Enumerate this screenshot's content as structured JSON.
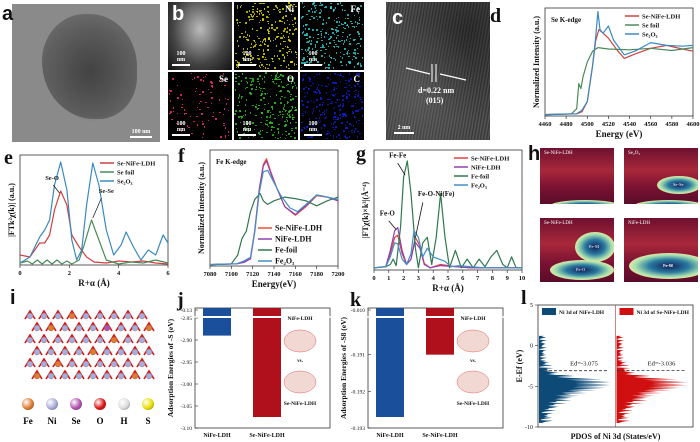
{
  "panels": {
    "a": {
      "label": "a",
      "scale": "100 nm"
    },
    "b": {
      "label": "b",
      "scale": "100 nm",
      "maps": [
        {
          "element": "",
          "color": "#d8d8d8"
        },
        {
          "element": "Ni",
          "color": "#e8e000"
        },
        {
          "element": "Fe",
          "color": "#30d8d8"
        },
        {
          "element": "Se",
          "color": "#e0207a"
        },
        {
          "element": "O",
          "color": "#30d020"
        },
        {
          "element": "C",
          "color": "#1020e0"
        }
      ]
    },
    "c": {
      "label": "c",
      "annotation": "d=0.22 nm",
      "plane": "(015)",
      "scale": "2 nm"
    },
    "h": {
      "label": "h",
      "maps": [
        {
          "title": "Se-NiFe-LDH",
          "features": [
            "Se-O"
          ]
        },
        {
          "title": "Se2O3",
          "features": [
            "Se-Se",
            "Se-O"
          ]
        },
        {
          "title": "Se-NiFe-LDH",
          "features": [
            "Fe-M",
            "Fe-O"
          ]
        },
        {
          "title": "NiFe-LDH",
          "features": [
            "Fe-M",
            "Fe-O"
          ]
        }
      ]
    },
    "i": {
      "label": "i",
      "legend": [
        {
          "name": "Fe",
          "color": "#e07a30"
        },
        {
          "name": "Ni",
          "color": "#a8acd8"
        },
        {
          "name": "Se",
          "color": "#b050b0"
        },
        {
          "name": "O",
          "color": "#e01010"
        },
        {
          "name": "H",
          "color": "#dddddd"
        },
        {
          "name": "S",
          "color": "#e8e000"
        }
      ]
    }
  },
  "chart_data": [
    {
      "id": "d",
      "label": "d",
      "type": "line",
      "title": "Se K-edge",
      "xlabel": "Energy (eV)",
      "ylabel": "Normalized Intensity (a.u.)",
      "xlim": [
        4460,
        4600
      ],
      "xticks": [
        4460,
        4480,
        4500,
        4520,
        4540,
        4560,
        4580,
        4600
      ],
      "ylim": [
        0,
        1.5
      ],
      "series": [
        {
          "name": "Se-NiFe-LDH",
          "color": "#d04040",
          "x": [
            4460,
            4490,
            4495,
            4500,
            4505,
            4508,
            4511,
            4515,
            4520,
            4528,
            4535,
            4545,
            4560,
            4575,
            4590,
            4600
          ],
          "y": [
            0.02,
            0.03,
            0.06,
            0.2,
            0.7,
            1.05,
            1.2,
            1.15,
            1.08,
            0.92,
            0.8,
            0.86,
            0.94,
            0.98,
            0.93,
            0.9
          ]
        },
        {
          "name": "Se foil",
          "color": "#4a8a5a",
          "x": [
            4460,
            4485,
            4490,
            4492,
            4494,
            4496,
            4500,
            4505,
            4510,
            4520,
            4540,
            4560,
            4580,
            4600
          ],
          "y": [
            0.02,
            0.03,
            0.1,
            0.45,
            0.38,
            0.55,
            0.75,
            0.9,
            0.95,
            0.93,
            0.92,
            0.94,
            0.91,
            0.95
          ]
        },
        {
          "name": "Se2O3",
          "color": "#3a8ac0",
          "x": [
            4460,
            4490,
            4495,
            4500,
            4505,
            4508,
            4510,
            4512,
            4515,
            4520,
            4525,
            4535,
            4545,
            4560,
            4575,
            4590,
            4600
          ],
          "y": [
            0.02,
            0.03,
            0.08,
            0.2,
            0.7,
            1.1,
            1.45,
            1.2,
            1.15,
            1.25,
            1.05,
            0.85,
            0.9,
            1.02,
            0.98,
            0.97,
            0.98
          ]
        }
      ]
    },
    {
      "id": "e",
      "label": "e",
      "type": "line",
      "xlabel": "R+α (Å)",
      "ylabel": "|FTk²χ(k)| (a.u.)",
      "xlim": [
        0,
        6
      ],
      "xticks": [
        0,
        2,
        4,
        6
      ],
      "ylim": [
        0,
        1.1
      ],
      "annotations": [
        "Se-O",
        "Se-Se"
      ],
      "series": [
        {
          "name": "Se-NiFe-LDH",
          "color": "#d04040",
          "x": [
            0,
            0.4,
            0.8,
            1.0,
            1.2,
            1.4,
            1.65,
            1.9,
            2.1,
            2.4,
            2.7,
            3.0,
            3.5,
            4.0,
            4.5,
            5.0,
            5.5,
            6.0
          ],
          "y": [
            0.1,
            0.08,
            0.22,
            0.22,
            0.3,
            0.55,
            0.74,
            0.6,
            0.3,
            0.18,
            0.08,
            0.03,
            0.02,
            0.04,
            0.03,
            0.04,
            0.02,
            0.01
          ]
        },
        {
          "name": "Se foil",
          "color": "#4a8a5a",
          "x": [
            0,
            0.3,
            0.5,
            0.7,
            0.9,
            1.1,
            1.3,
            1.5,
            1.7,
            1.9,
            2.1,
            2.4,
            2.6,
            2.9,
            3.2,
            3.5,
            4.0,
            4.5,
            5.0,
            5.5,
            6.0
          ],
          "y": [
            0.02,
            0.04,
            0.01,
            0.05,
            0.01,
            0.05,
            0.01,
            0.05,
            0.01,
            0.04,
            0.01,
            0.05,
            0.2,
            0.45,
            0.25,
            0.05,
            0.01,
            0.03,
            0.02,
            0.05,
            0.02
          ]
        },
        {
          "name": "Se2O3",
          "color": "#3a8ac0",
          "x": [
            0,
            0.4,
            0.8,
            1.0,
            1.2,
            1.4,
            1.65,
            1.9,
            2.1,
            2.3,
            2.5,
            2.7,
            2.95,
            3.2,
            3.5,
            3.8,
            4.1,
            4.3,
            4.6,
            4.9,
            5.2,
            5.5,
            5.8,
            6.0
          ],
          "y": [
            0.02,
            0.08,
            0.28,
            0.35,
            0.45,
            0.8,
            1.03,
            0.75,
            0.25,
            0.05,
            0.15,
            0.6,
            1.02,
            0.8,
            0.35,
            0.1,
            0.2,
            0.33,
            0.18,
            0.05,
            0.15,
            0.1,
            0.3,
            0.22
          ]
        }
      ]
    },
    {
      "id": "f",
      "label": "f",
      "type": "line",
      "title": "Fe K-edge",
      "xlabel": "Energy(eV)",
      "ylabel": "Normalized Intensity (a.u.)",
      "xlim": [
        7080,
        7200
      ],
      "xticks": [
        7080,
        7100,
        7120,
        7140,
        7160,
        7180,
        7200
      ],
      "ylim": [
        0,
        1.6
      ],
      "series": [
        {
          "name": "Se-NiFe-LDH",
          "color": "#f05030",
          "x": [
            7080,
            7105,
            7112,
            7118,
            7122,
            7126,
            7130,
            7133,
            7137,
            7142,
            7150,
            7160,
            7170,
            7180,
            7190,
            7200
          ],
          "y": [
            0.02,
            0.03,
            0.06,
            0.1,
            0.5,
            1.05,
            1.4,
            1.48,
            1.3,
            1.1,
            0.82,
            0.7,
            0.82,
            0.97,
            0.95,
            0.9
          ]
        },
        {
          "name": "NiFe-LDH",
          "color": "#9040b0",
          "x": [
            7080,
            7105,
            7112,
            7118,
            7122,
            7126,
            7130,
            7133,
            7137,
            7142,
            7150,
            7160,
            7170,
            7180,
            7190,
            7200
          ],
          "y": [
            0.02,
            0.03,
            0.05,
            0.1,
            0.48,
            1.02,
            1.38,
            1.45,
            1.28,
            1.1,
            0.82,
            0.71,
            0.83,
            0.98,
            0.95,
            0.9
          ]
        },
        {
          "name": "Fe-foil",
          "color": "#307850",
          "x": [
            7080,
            7100,
            7106,
            7110,
            7114,
            7118,
            7122,
            7127,
            7130,
            7134,
            7140,
            7150,
            7160,
            7170,
            7180,
            7190,
            7200
          ],
          "y": [
            0.02,
            0.03,
            0.15,
            0.38,
            0.48,
            0.75,
            0.92,
            1.0,
            0.9,
            0.85,
            0.9,
            0.95,
            0.93,
            0.9,
            0.83,
            0.9,
            0.95
          ]
        },
        {
          "name": "Fe2O3",
          "color": "#4090c8",
          "x": [
            7080,
            7105,
            7112,
            7118,
            7122,
            7126,
            7130,
            7134,
            7140,
            7146,
            7155,
            7162,
            7170,
            7180,
            7190,
            7200
          ],
          "y": [
            0.02,
            0.03,
            0.07,
            0.12,
            0.48,
            1.0,
            1.3,
            1.32,
            1.15,
            0.98,
            0.8,
            0.75,
            0.85,
            0.98,
            0.95,
            0.92
          ]
        }
      ]
    },
    {
      "id": "g",
      "label": "g",
      "type": "line",
      "xlabel": "R+α (Å)",
      "ylabel": "|FTχ(k)×k³|(Å⁻⁴)",
      "xlim": [
        0,
        10
      ],
      "xticks": [
        0,
        1,
        2,
        3,
        4,
        5,
        6,
        7,
        8,
        9,
        10
      ],
      "ylim": [
        0,
        1.1
      ],
      "annotations": [
        "Fe-Fe",
        "Fe-O",
        "Fe-O-Ni(Fe)"
      ],
      "series": [
        {
          "name": "Se-NiFe-LDH",
          "color": "#e04040",
          "x": [
            0,
            0.8,
            1.1,
            1.4,
            1.6,
            1.9,
            2.2,
            2.5,
            2.8,
            3.1,
            3.4,
            3.8,
            4.5,
            5.5,
            6.5,
            7.5,
            8.5,
            10
          ],
          "y": [
            0.02,
            0.03,
            0.15,
            0.3,
            0.32,
            0.15,
            0.05,
            0.1,
            0.3,
            0.22,
            0.06,
            0.02,
            0.05,
            0.03,
            0.02,
            0.02,
            0.02,
            0.02
          ]
        },
        {
          "name": "NiFe-LDH",
          "color": "#9040b0",
          "x": [
            0,
            0.8,
            1.1,
            1.4,
            1.6,
            1.9,
            2.2,
            2.5,
            2.75,
            3.1,
            3.4,
            3.8,
            4.5,
            5.5,
            6.5,
            7.5,
            8.5,
            10
          ],
          "y": [
            0.02,
            0.03,
            0.18,
            0.36,
            0.39,
            0.18,
            0.05,
            0.1,
            0.26,
            0.2,
            0.05,
            0.02,
            0.04,
            0.03,
            0.02,
            0.02,
            0.02,
            0.02
          ]
        },
        {
          "name": "Fe-foil",
          "color": "#307850",
          "x": [
            0,
            0.8,
            1.1,
            1.3,
            1.5,
            1.8,
            2.0,
            2.25,
            2.5,
            2.8,
            3.0,
            3.3,
            3.6,
            3.9,
            4.2,
            4.5,
            4.8,
            5.1,
            5.5,
            5.9,
            6.3,
            6.7,
            7.1,
            7.5,
            7.9,
            8.3,
            8.7,
            9.0,
            9.3,
            9.6,
            10
          ],
          "y": [
            0.02,
            0.03,
            0.05,
            0.1,
            0.04,
            0.4,
            0.85,
            1.0,
            0.7,
            0.2,
            0.02,
            0.25,
            0.3,
            0.05,
            0.3,
            0.7,
            0.3,
            0.02,
            0.18,
            0.02,
            0.1,
            0.02,
            0.1,
            0.03,
            0.12,
            0.18,
            0.05,
            0.02,
            0.12,
            0.02,
            0.02
          ]
        },
        {
          "name": "Fe2O3",
          "color": "#4090c8",
          "x": [
            0,
            0.8,
            1.1,
            1.4,
            1.6,
            1.9,
            2.2,
            2.5,
            2.7,
            3.0,
            3.3,
            3.6,
            4.0,
            4.4,
            4.8,
            5.2,
            5.8,
            6.5,
            7.5,
            8.5,
            10
          ],
          "y": [
            0.02,
            0.03,
            0.12,
            0.25,
            0.24,
            0.1,
            0.05,
            0.15,
            0.36,
            0.3,
            0.12,
            0.2,
            0.12,
            0.1,
            0.08,
            0.03,
            0.04,
            0.03,
            0.02,
            0.02,
            0.02
          ]
        }
      ]
    },
    {
      "id": "j",
      "label": "j",
      "type": "bar",
      "ylabel": "Adsorption Energies of -S (eV)",
      "categories": [
        "NiFe-LDH",
        "Se-NiFe-LDH"
      ],
      "values": [
        -2.89,
        -3.075
      ],
      "colors": [
        "#1a4f9c",
        "#b0101c"
      ],
      "yticks": [
        "-0.13",
        "-2.85",
        "-2.90",
        "-2.95",
        "-3.00",
        "-3.05",
        "-3.10"
      ],
      "ylim": [
        -3.1,
        -2.85
      ],
      "axis_break_top": -0.13,
      "inset_labels": [
        "NiFe-LDH",
        "vs.",
        "Se-NiFe-LDH"
      ]
    },
    {
      "id": "k",
      "label": "k",
      "type": "bar",
      "ylabel": "Adsorption Energies of -S8 (eV)",
      "categories": [
        "NiFe-LDH",
        "Se-NiFe-LDH"
      ],
      "values": [
        -0.1927,
        -0.191
      ],
      "colors": [
        "#1a4f9c",
        "#b0101c"
      ],
      "yticks": [
        "-0.010",
        "-0.191",
        "-0.192",
        "-0.193"
      ],
      "ylim": [
        -0.193,
        -0.19
      ],
      "axis_break_top": -0.01,
      "inset_labels": [
        "NiFe-LDH",
        "vs.",
        "Se-NiFe-LDH"
      ]
    },
    {
      "id": "l",
      "label": "l",
      "type": "area",
      "xlabel": "PDOS of Ni 3d  (States/eV)",
      "ylabel": "E-Ef (eV)",
      "ylim": [
        -10,
        5
      ],
      "yticks": [
        5,
        0,
        -5,
        -10
      ],
      "series": [
        {
          "name": "Ni 3d of NiFe-LDH",
          "color": "#0d4a78",
          "d_band_center": "Ed=-3.075",
          "d_band_value": -3.075
        },
        {
          "name": "Ni 3d of Se-NiFe-LDH",
          "color": "#d01010",
          "d_band_center": "Ed=-3.036",
          "d_band_value": -3.036
        }
      ]
    }
  ]
}
